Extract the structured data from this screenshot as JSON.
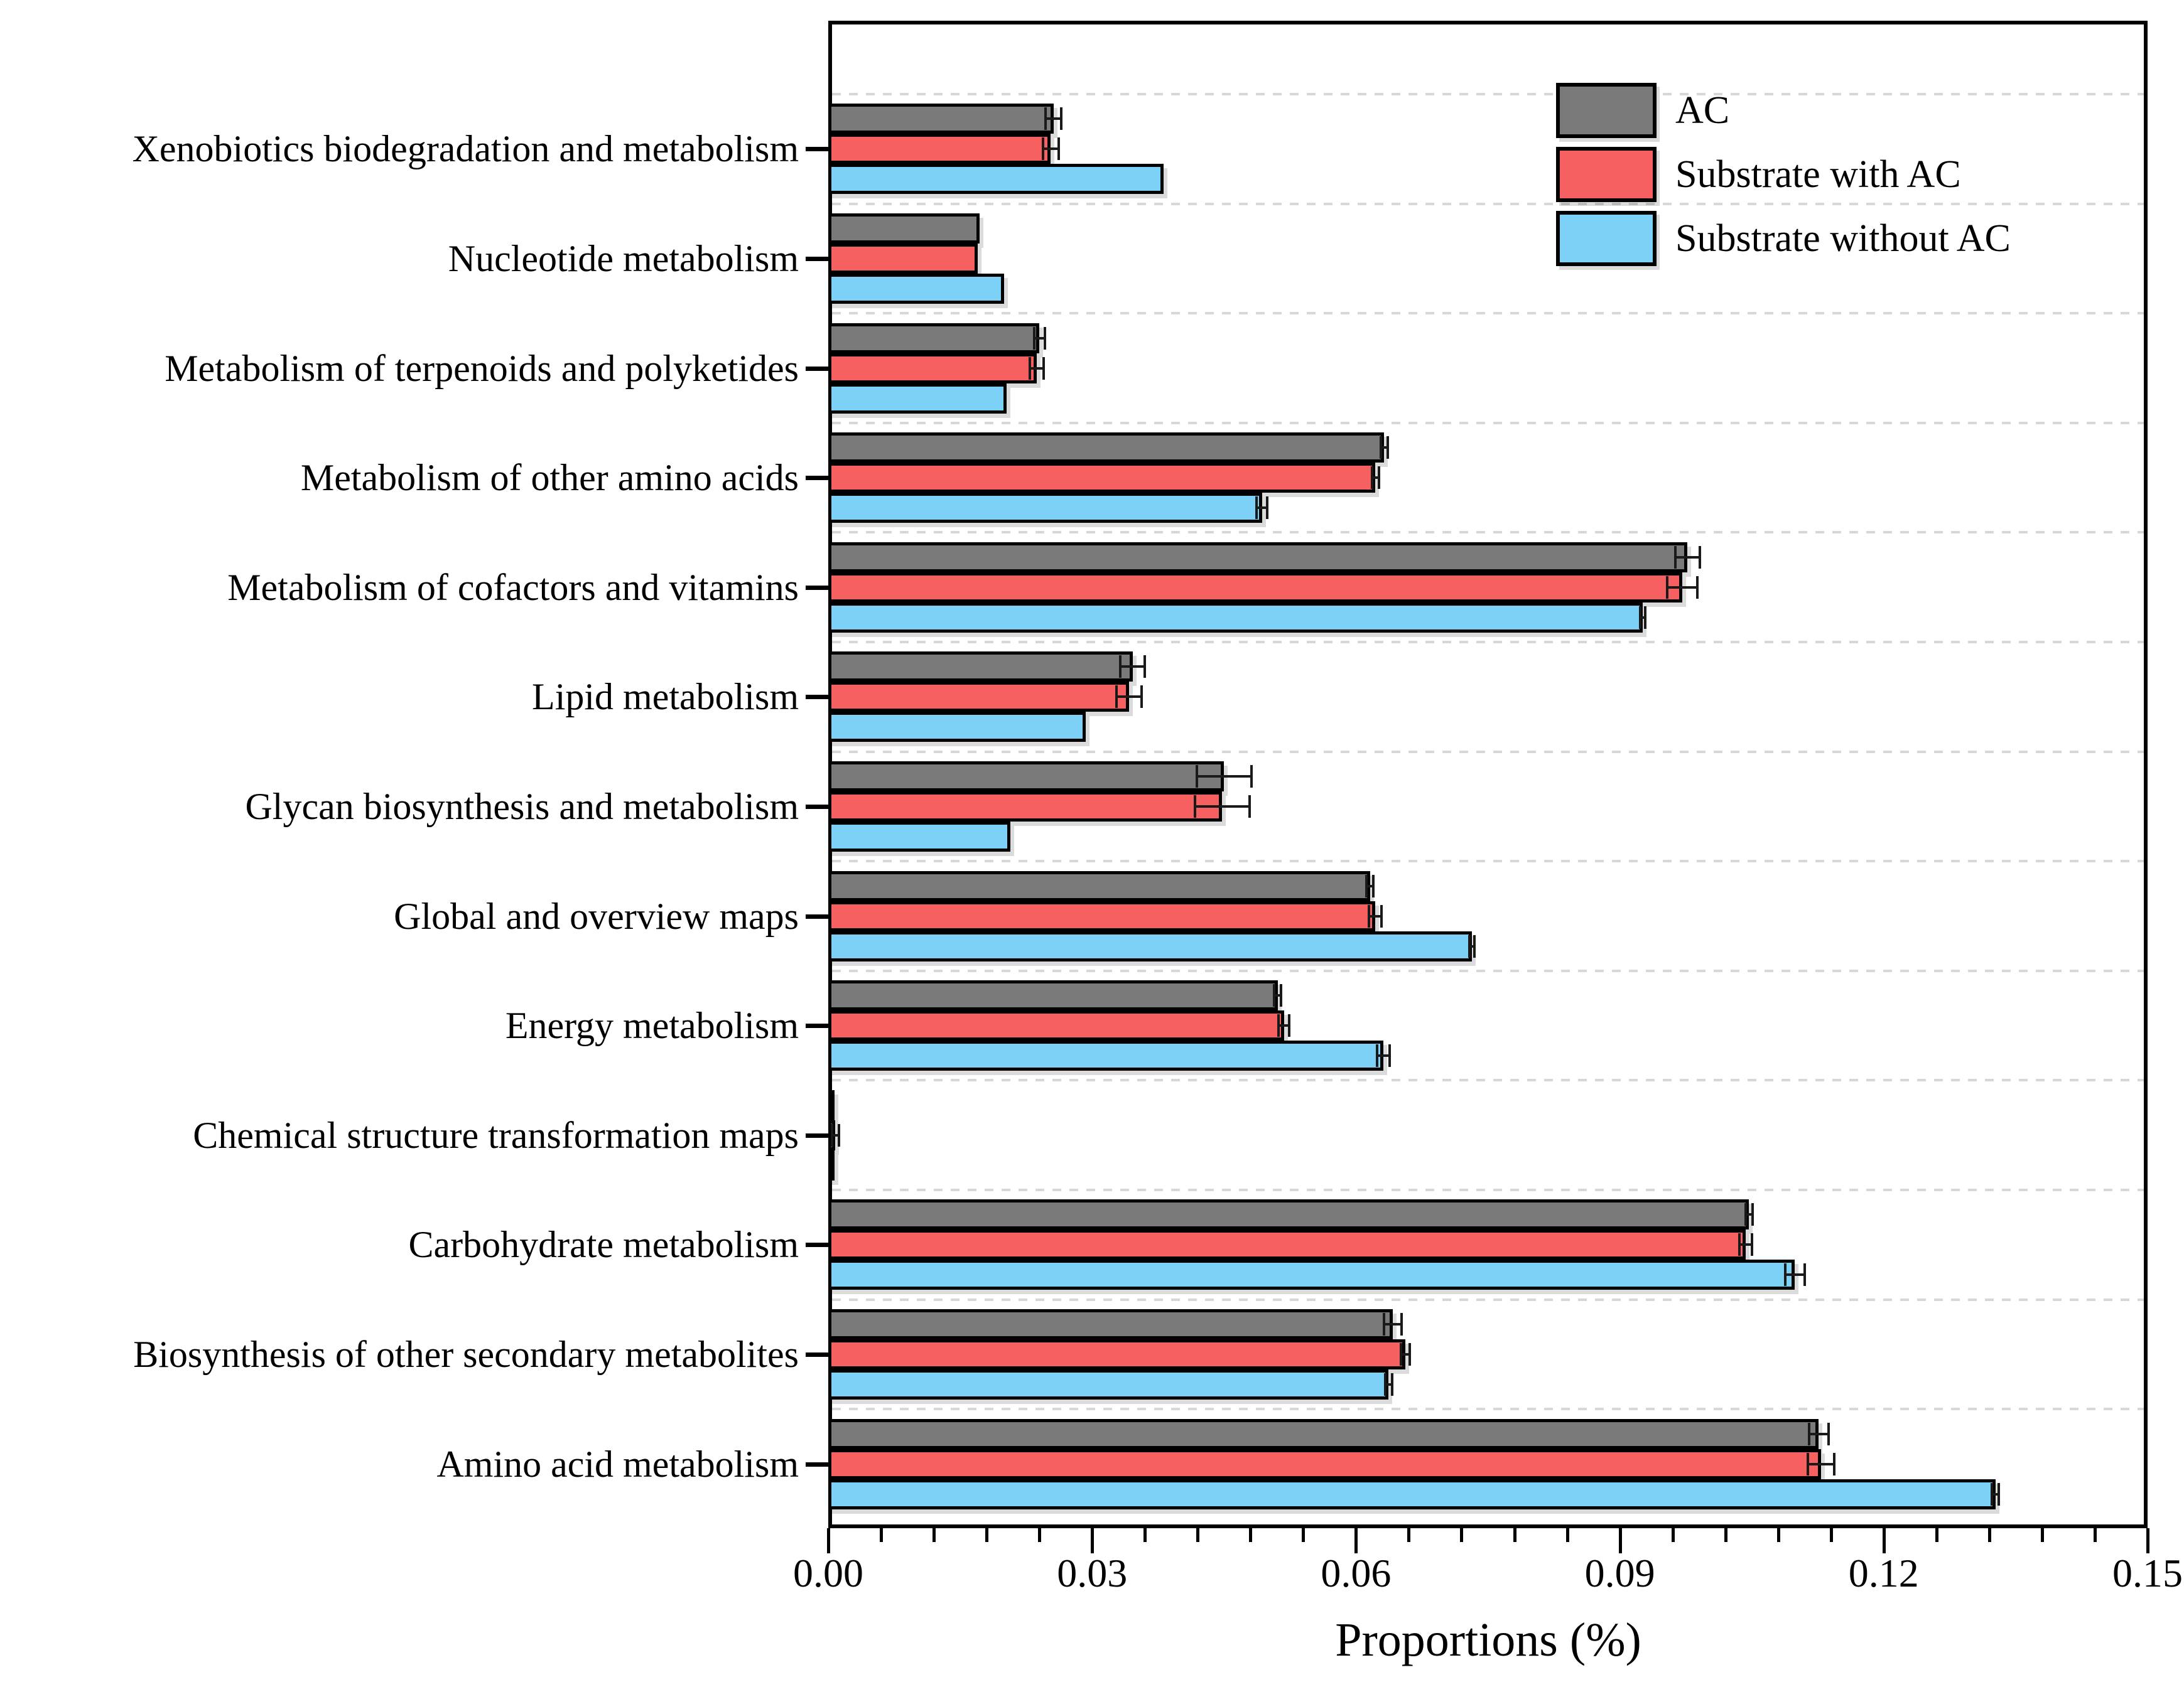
{
  "figure": {
    "background": "#ffffff",
    "frame_color": "#000000"
  },
  "colors": {
    "bar_border": "#000000",
    "error_bar": "#1a1a1a",
    "gridline": "#d7d7d7",
    "series_ac": "#7a7a7a",
    "series_with_ac": "#f76060",
    "series_without_ac": "#7ed1f6"
  },
  "legend": {
    "position": "top-right",
    "items": [
      {
        "label": "AC",
        "color": "#7a7a7a"
      },
      {
        "label": "Substrate with AC",
        "color": "#f76060"
      },
      {
        "label": "Substrate without AC",
        "color": "#7ed1f6"
      }
    ]
  },
  "chart_data": {
    "type": "bar",
    "orientation": "horizontal",
    "title": "",
    "xlabel": "Proportions (%)",
    "ylabel": "",
    "xlim": [
      0,
      0.15
    ],
    "x_major_tick_step": 0.03,
    "x_minor_tick_step": 0.006,
    "x_tick_labels": [
      "0.00",
      "0.03",
      "0.06",
      "0.09",
      "0.12",
      "0.15"
    ],
    "grid": "dashed horizontal lines at group boundaries",
    "legend_position": "top-right inside plot",
    "categories": [
      "Xenobiotics biodegradation and metabolism",
      "Nucleotide metabolism",
      "Metabolism of terpenoids and polyketides",
      "Metabolism of other amino acids",
      "Metabolism of cofactors and vitamins",
      "Lipid metabolism",
      "Glycan biosynthesis and metabolism",
      "Global and overview maps",
      "Energy metabolism",
      "Chemical structure transformation maps",
      "Carbohydrate metabolism",
      "Biosynthesis of other secondary metabolites",
      "Amino acid metabolism"
    ],
    "series": [
      {
        "name": "AC",
        "color": "#7a7a7a",
        "values": [
          0.0256,
          0.0172,
          0.024,
          0.0632,
          0.0977,
          0.0346,
          0.045,
          0.0616,
          0.0511,
          0.0006,
          0.1047,
          0.0642,
          0.1126
        ],
        "errors": [
          0.0009,
          0.0002,
          0.0006,
          0.0004,
          0.0014,
          0.0014,
          0.0031,
          0.0004,
          0.0004,
          0.0001,
          0.0004,
          0.001,
          0.0011
        ]
      },
      {
        "name": "Substrate with AC",
        "color": "#f76060",
        "values": [
          0.0253,
          0.017,
          0.0237,
          0.0622,
          0.0971,
          0.0342,
          0.0448,
          0.0622,
          0.0518,
          0.0008,
          0.1043,
          0.0656,
          0.1129
        ],
        "errors": [
          0.0009,
          0.0002,
          0.0008,
          0.0004,
          0.0017,
          0.0014,
          0.0031,
          0.0007,
          0.0006,
          0.0004,
          0.0007,
          0.0005,
          0.0015
        ]
      },
      {
        "name": "Substrate without AC",
        "color": "#7ed1f6",
        "values": [
          0.0381,
          0.02,
          0.0203,
          0.0493,
          0.0926,
          0.0293,
          0.0207,
          0.0732,
          0.0631,
          0.0002,
          0.1099,
          0.0637,
          0.1327
        ],
        "errors": [
          0.0002,
          0.0002,
          0.0002,
          0.0006,
          0.0003,
          0.0002,
          0.0002,
          0.0003,
          0.0007,
          0.0001,
          0.0011,
          0.0004,
          0.0004
        ]
      }
    ]
  }
}
